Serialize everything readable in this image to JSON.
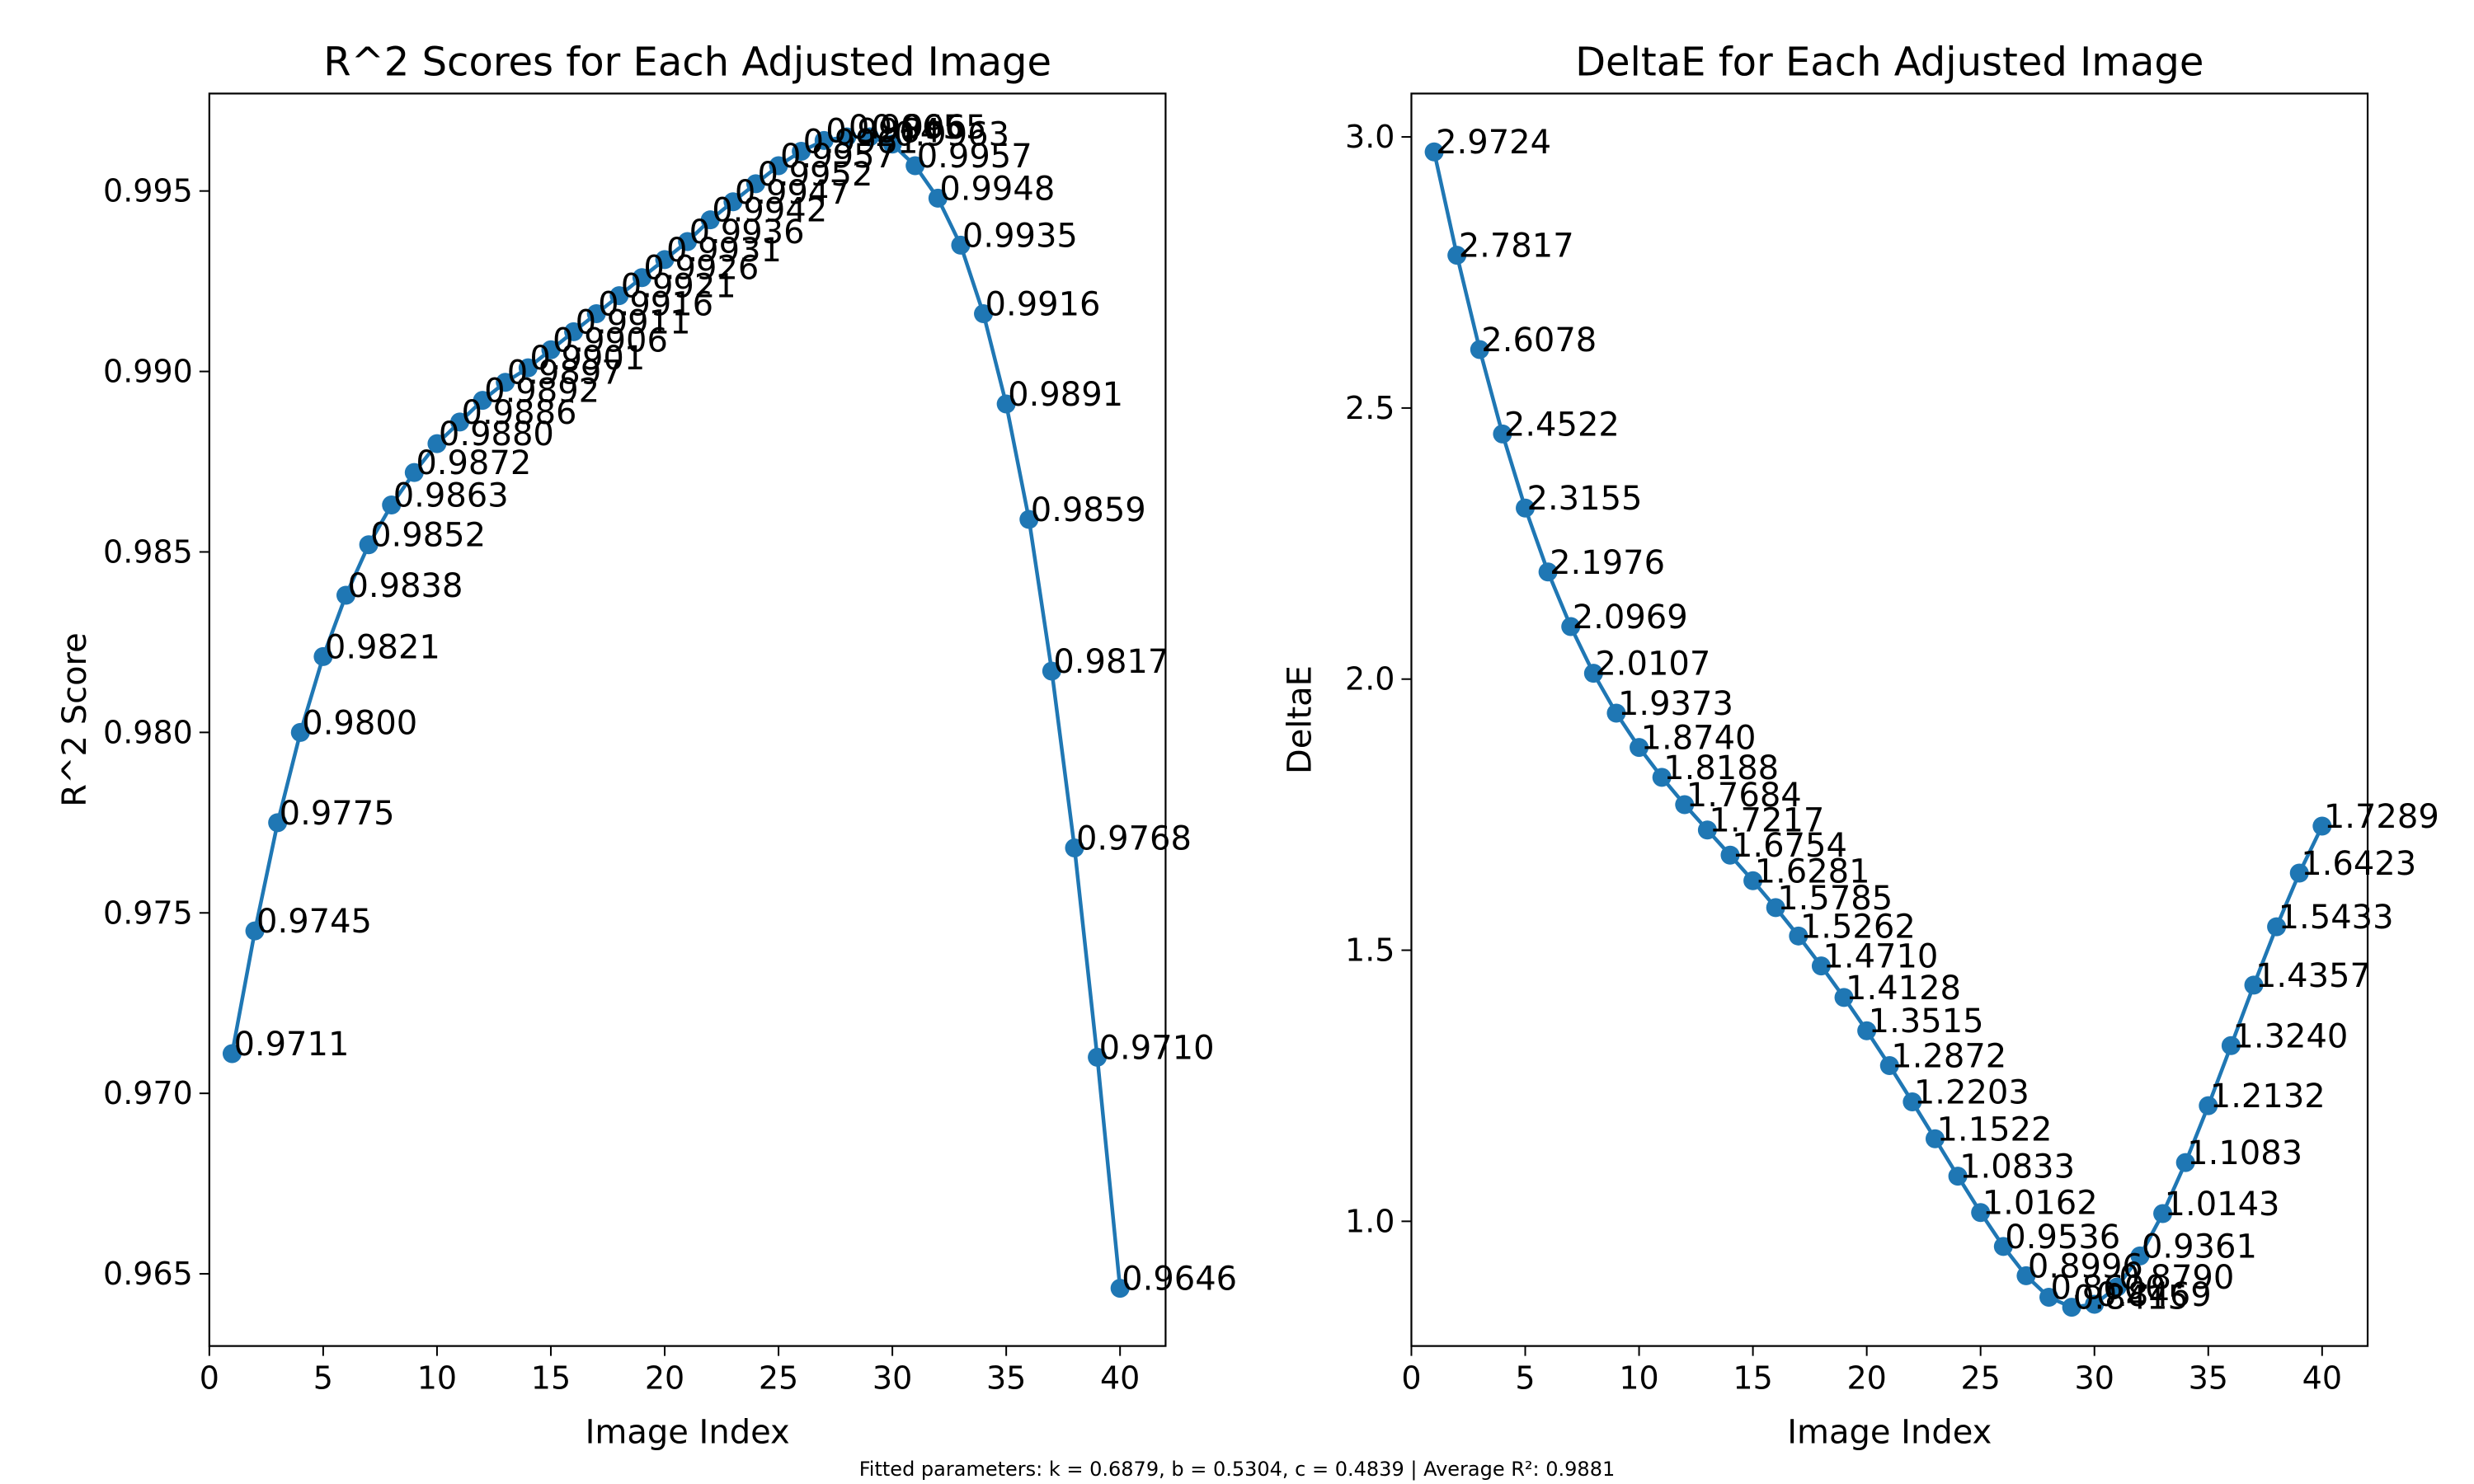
{
  "footer": "Fitted parameters: k = 0.6879, b = 0.5304, c = 0.4839 | Average R²: 0.9881",
  "style": {
    "line_color": "#1f77b4",
    "marker_color": "#1f77b4"
  },
  "chart_data": [
    {
      "type": "line",
      "title": "R^2 Scores for Each Adjusted Image",
      "xlabel": "Image Index",
      "ylabel": "R^2 Score",
      "xlim": [
        0,
        42
      ],
      "ylim": [
        0.963,
        0.9977
      ],
      "xticks": [
        0,
        5,
        10,
        15,
        20,
        25,
        30,
        35,
        40
      ],
      "xtick_labels": [
        "0",
        "5",
        "10",
        "15",
        "20",
        "25",
        "30",
        "35",
        "40"
      ],
      "yticks": [
        0.965,
        0.97,
        0.975,
        0.98,
        0.985,
        0.99,
        0.995
      ],
      "ytick_labels": [
        "0.965",
        "0.970",
        "0.975",
        "0.980",
        "0.985",
        "0.990",
        "0.995"
      ],
      "grid": false,
      "markers": true,
      "x": [
        1,
        2,
        3,
        4,
        5,
        6,
        7,
        8,
        9,
        10,
        11,
        12,
        13,
        14,
        15,
        16,
        17,
        18,
        19,
        20,
        21,
        22,
        23,
        24,
        25,
        26,
        27,
        28,
        29,
        30,
        31,
        32,
        33,
        34,
        35,
        36,
        37,
        38,
        39,
        40
      ],
      "values": [
        0.9711,
        0.9745,
        0.9775,
        0.98,
        0.9821,
        0.9838,
        0.9852,
        0.9863,
        0.9872,
        0.988,
        0.9886,
        0.9892,
        0.9897,
        0.9901,
        0.9906,
        0.9911,
        0.9916,
        0.9921,
        0.9926,
        0.9931,
        0.9936,
        0.9942,
        0.9947,
        0.9952,
        0.9957,
        0.9961,
        0.9964,
        0.9965,
        0.9965,
        0.9963,
        0.9957,
        0.9948,
        0.9935,
        0.9916,
        0.9891,
        0.9859,
        0.9817,
        0.9768,
        0.971,
        0.9646
      ],
      "point_labels": [
        "0.9711",
        "0.9745",
        "0.9775",
        "0.9800",
        "0.9821",
        "0.9838",
        "0.9852",
        "0.9863",
        "0.9872",
        "0.9880",
        "0.9886",
        "0.9892",
        "0.9897",
        "0.9901",
        "0.9906",
        "0.9911",
        "0.9916",
        "0.9921",
        "0.9926",
        "0.9931",
        "0.9936",
        "0.9942",
        "0.9947",
        "0.9952",
        "0.9957",
        "0.9961",
        "0.9964",
        "0.9965",
        "0.9965",
        "0.9963",
        "0.9957",
        "0.9948",
        "0.9935",
        "0.9916",
        "0.9891",
        "0.9859",
        "0.9817",
        "0.9768",
        "0.9710",
        "0.9646"
      ]
    },
    {
      "type": "line",
      "title": "DeltaE for Each Adjusted Image",
      "xlabel": "Image Index",
      "ylabel": "DeltaE",
      "xlim": [
        0,
        42
      ],
      "ylim": [
        0.77,
        3.08
      ],
      "xticks": [
        0,
        5,
        10,
        15,
        20,
        25,
        30,
        35,
        40
      ],
      "xtick_labels": [
        "0",
        "5",
        "10",
        "15",
        "20",
        "25",
        "30",
        "35",
        "40"
      ],
      "yticks": [
        1.0,
        1.5,
        2.0,
        2.5,
        3.0
      ],
      "ytick_labels": [
        "1.0",
        "1.5",
        "2.0",
        "2.5",
        "3.0"
      ],
      "grid": false,
      "markers": true,
      "x": [
        1,
        2,
        3,
        4,
        5,
        6,
        7,
        8,
        9,
        10,
        11,
        12,
        13,
        14,
        15,
        16,
        17,
        18,
        19,
        20,
        21,
        22,
        23,
        24,
        25,
        26,
        27,
        28,
        29,
        30,
        31,
        32,
        33,
        34,
        35,
        36,
        37,
        38,
        39,
        40
      ],
      "values": [
        2.9724,
        2.7817,
        2.6078,
        2.4522,
        2.3155,
        2.1976,
        2.0969,
        2.0107,
        1.9373,
        1.874,
        1.8188,
        1.7684,
        1.7217,
        1.6754,
        1.6281,
        1.5785,
        1.5262,
        1.471,
        1.4128,
        1.3515,
        1.2872,
        1.2203,
        1.1522,
        1.0833,
        1.0162,
        0.9536,
        0.8996,
        0.86,
        0.8415,
        0.8469,
        0.879,
        0.9361,
        1.0143,
        1.1083,
        1.2132,
        1.324,
        1.4357,
        1.5433,
        1.6423,
        1.7289
      ],
      "point_labels": [
        "2.9724",
        "2.7817",
        "2.6078",
        "2.4522",
        "2.3155",
        "2.1976",
        "2.0969",
        "2.0107",
        "1.9373",
        "1.8740",
        "1.8188",
        "1.7684",
        "1.7217",
        "1.6754",
        "1.6281",
        "1.5785",
        "1.5262",
        "1.4710",
        "1.4128",
        "1.3515",
        "1.2872",
        "1.2203",
        "1.1522",
        "1.0833",
        "1.0162",
        "0.9536",
        "0.8996",
        "0.8600",
        "0.8415",
        "0.8469",
        "0.8790",
        "0.9361",
        "1.0143",
        "1.1083",
        "1.2132",
        "1.3240",
        "1.4357",
        "1.5433",
        "1.6423",
        "1.7289"
      ]
    }
  ]
}
